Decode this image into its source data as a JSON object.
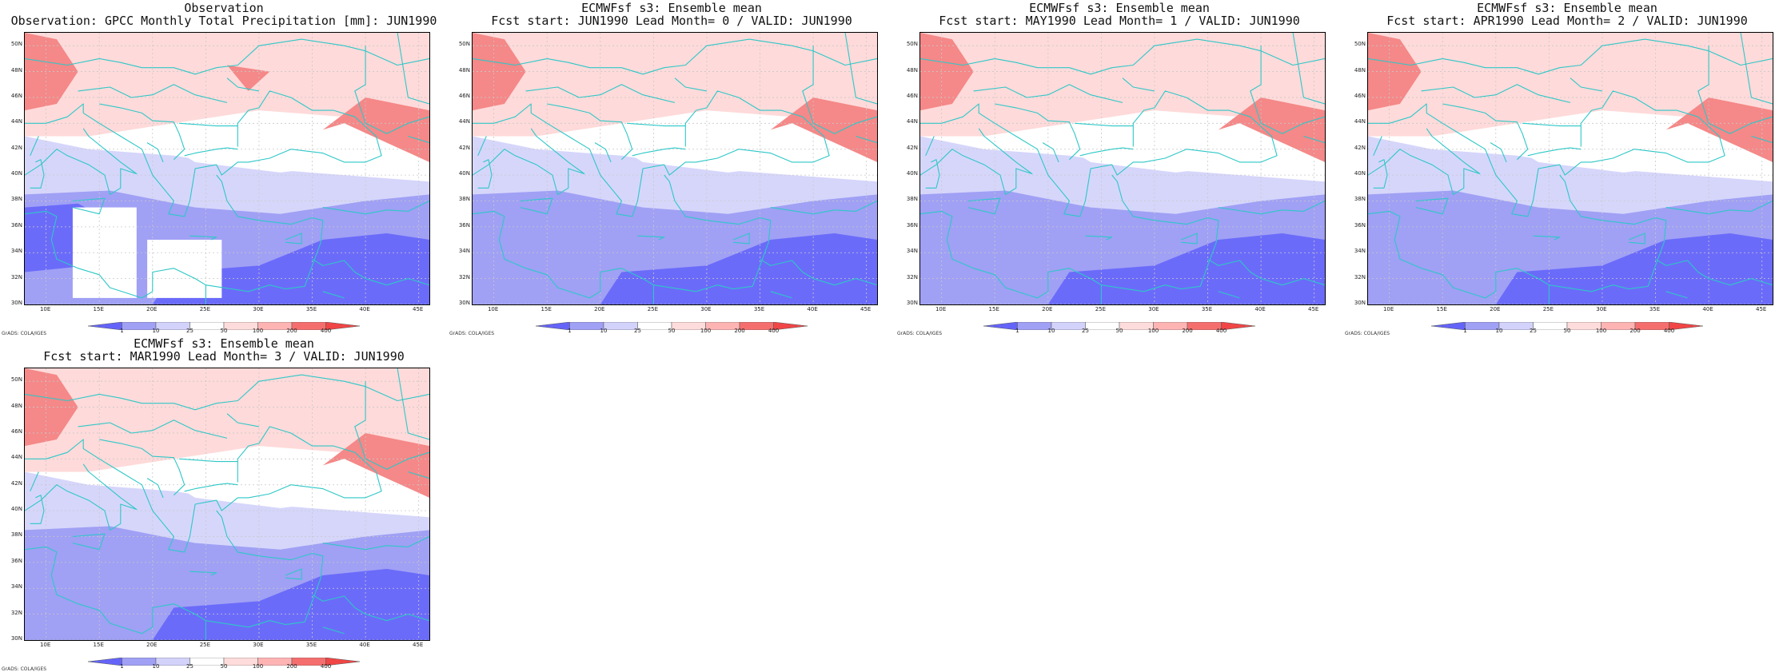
{
  "panels": [
    {
      "id": "obs",
      "title_line1": "Observation",
      "title_line2": "Observation: GPCC Monthly Total Precipitation [mm]: JUN1990",
      "masked_boxes": true
    },
    {
      "id": "lead0",
      "title_line1": "ECMWFsf s3: Ensemble mean",
      "title_line2": "Fcst start: JUN1990  Lead Month= 0 / VALID: JUN1990",
      "masked_boxes": false
    },
    {
      "id": "lead1",
      "title_line1": "ECMWFsf s3: Ensemble mean",
      "title_line2": "Fcst start: MAY1990  Lead Month= 1 / VALID: JUN1990",
      "masked_boxes": false
    },
    {
      "id": "lead2",
      "title_line1": "ECMWFsf s3: Ensemble mean",
      "title_line2": "Fcst start: APR1990  Lead Month= 2 / VALID: JUN1990",
      "masked_boxes": false
    },
    {
      "id": "lead3",
      "title_line1": "ECMWFsf s3: Ensemble mean",
      "title_line2": "Fcst start: MAR1990  Lead Month= 3 / VALID: JUN1990",
      "masked_boxes": false
    }
  ],
  "map_extent": {
    "lon_min": 8,
    "lon_max": 46,
    "lat_min": 30,
    "lat_max": 51
  },
  "lat_labels": [
    "30N",
    "32N",
    "34N",
    "36N",
    "38N",
    "40N",
    "42N",
    "44N",
    "46N",
    "48N",
    "50N"
  ],
  "lat_values": [
    30,
    32,
    34,
    36,
    38,
    40,
    42,
    44,
    46,
    48,
    50
  ],
  "lon_labels": [
    "10E",
    "15E",
    "20E",
    "25E",
    "30E",
    "35E",
    "40E",
    "45E"
  ],
  "lon_values": [
    10,
    15,
    20,
    25,
    30,
    35,
    40,
    45
  ],
  "colorbar": {
    "levels": [
      "1",
      "10",
      "25",
      "50",
      "100",
      "200",
      "400"
    ],
    "colors": [
      "#6464f8",
      "#a0a0f5",
      "#d2d2fb",
      "#ffffff",
      "#ffdcdc",
      "#ffb4b4",
      "#f56e6e",
      "#f04646"
    ]
  },
  "footer": "GrADS: COLA/IGES",
  "colors": {
    "coast": "#2ec7c7",
    "grid": "#c8c8c8",
    "very_dry": "#6b6bfa",
    "dry": "#a0a0f5",
    "light_dry": "#d6d6fb",
    "light_wet": "#ffdada",
    "wet": "#f58888"
  }
}
